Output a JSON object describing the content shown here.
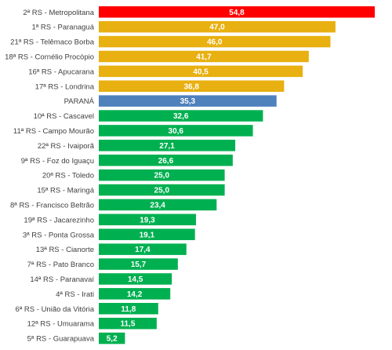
{
  "chart_data": {
    "type": "bar",
    "orientation": "horizontal",
    "categories": [
      "2ª RS - Metropolitana",
      "1ª RS - Paranaguá",
      "21ª RS - Telêmaco Borba",
      "18ª RS - Cornélio Procópio",
      "16ª RS - Apucarana",
      "17ª RS - Londrina",
      "PARANÁ",
      "10ª RS - Cascavel",
      "11ª RS - Campo Mourão",
      "22ª RS - Ivaiporã",
      "9ª RS - Foz do Iguaçu",
      "20ª RS - Toledo",
      "15ª RS - Maringá",
      "8ª RS - Francisco Beltrão",
      "19ª RS - Jacarezinho",
      "3ª RS - Ponta Grossa",
      "13ª RS - Cianorte",
      "7ª RS - Pato Branco",
      "14ª RS - Paranavaí",
      "4ª RS - Irati",
      "6ª RS - União da Vitória",
      "12ª RS - Umuarama",
      "5ª RS - Guarapuava"
    ],
    "values": [
      54.8,
      47.0,
      46.0,
      41.7,
      40.5,
      36.8,
      35.3,
      32.6,
      30.6,
      27.1,
      26.6,
      25.0,
      25.0,
      23.4,
      19.3,
      19.1,
      17.4,
      15.7,
      14.5,
      14.2,
      11.8,
      11.5,
      5.2
    ],
    "value_labels": [
      "54,8",
      "47,0",
      "46,0",
      "41,7",
      "40,5",
      "36,8",
      "35,3",
      "32,6",
      "30,6",
      "27,1",
      "26,6",
      "25,0",
      "25,0",
      "23,4",
      "19,3",
      "19,1",
      "17,4",
      "15,7",
      "14,5",
      "14,2",
      "11,8",
      "11,5",
      "5,2"
    ],
    "bar_colors": [
      "#ff0000",
      "#e8b010",
      "#e8b010",
      "#e8b010",
      "#e8b010",
      "#e8b010",
      "#4f81bd",
      "#00b050",
      "#00b050",
      "#00b050",
      "#00b050",
      "#00b050",
      "#00b050",
      "#00b050",
      "#00b050",
      "#00b050",
      "#00b050",
      "#00b050",
      "#00b050",
      "#00b050",
      "#00b050",
      "#00b050",
      "#00b050"
    ],
    "xlim": [
      0,
      54.8
    ],
    "title": "",
    "xlabel": "",
    "ylabel": "",
    "grid": false,
    "legend": "none"
  }
}
